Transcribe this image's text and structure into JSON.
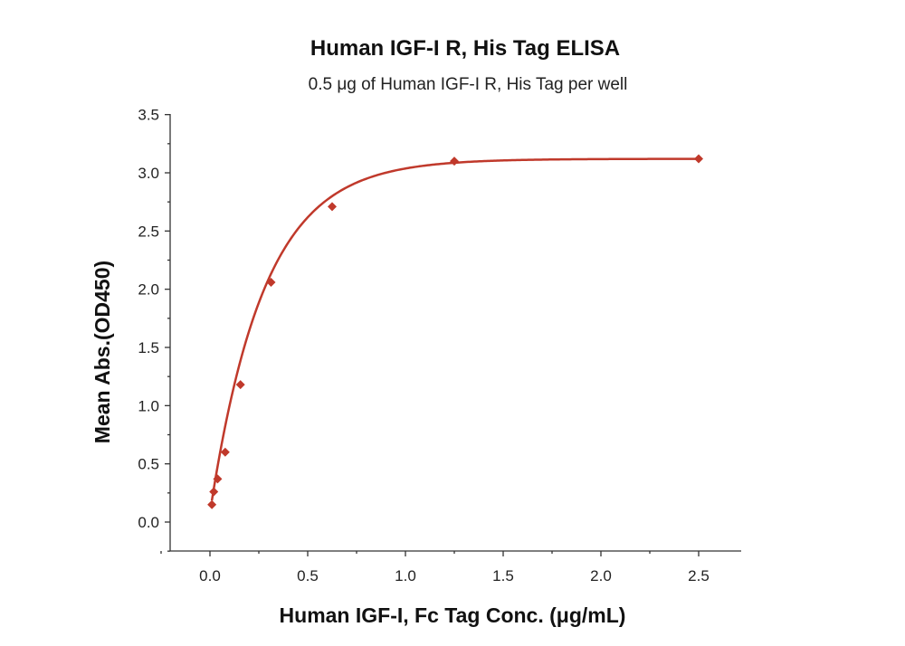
{
  "chart_data": {
    "type": "scatter",
    "title": "Human IGF-I R, His Tag ELISA",
    "subtitle": "0.5 μg of Human IGF-I R, His Tag per well",
    "xlabel": "Human IGF-I, Fc Tag Conc. (μg/mL)",
    "ylabel": "Mean Abs.(OD450)",
    "xlim": [
      -0.2,
      2.7
    ],
    "ylim": [
      -0.25,
      3.5
    ],
    "xticks": [
      "0.0",
      "0.5",
      "1.0",
      "1.5",
      "2.0",
      "2.5"
    ],
    "yticks": [
      "0.0",
      "0.5",
      "1.0",
      "1.5",
      "2.0",
      "2.5",
      "3.0",
      "3.5"
    ],
    "grid": false,
    "color": "#c0392b",
    "series": [
      {
        "points": [
          {
            "x": 0.0098,
            "y": 0.15
          },
          {
            "x": 0.0195,
            "y": 0.26
          },
          {
            "x": 0.039,
            "y": 0.37
          },
          {
            "x": 0.078,
            "y": 0.6
          },
          {
            "x": 0.156,
            "y": 1.18
          },
          {
            "x": 0.3125,
            "y": 2.06
          },
          {
            "x": 0.625,
            "y": 2.71
          },
          {
            "x": 1.25,
            "y": 3.1
          },
          {
            "x": 2.5,
            "y": 3.12
          }
        ],
        "fit": {
          "type": "exponential-saturation",
          "ymin": 0.08,
          "ymax": 3.12,
          "k": 3.6
        }
      }
    ]
  }
}
